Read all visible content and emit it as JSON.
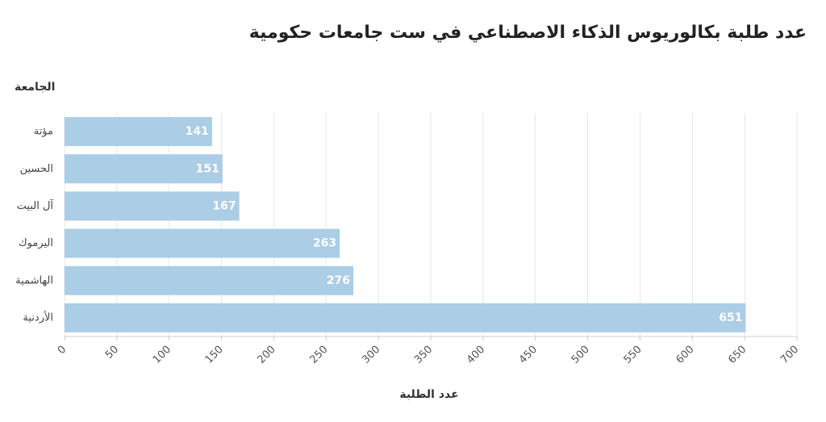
{
  "chart_data": {
    "type": "bar",
    "orientation": "horizontal",
    "title": "عدد طلبة بكالوريوس الذكاء الاصطناعي في ست جامعات حكومية",
    "xlabel": "عدد الطلبة",
    "ylabel": "الجامعة",
    "categories": [
      "مؤتة",
      "الحسين",
      "آل البيت",
      "اليرموك",
      "الهاشمية",
      "الأردنية"
    ],
    "values": [
      141,
      151,
      167,
      263,
      276,
      651
    ],
    "xlim": [
      0,
      700
    ],
    "xticks": [
      0,
      50,
      100,
      150,
      200,
      250,
      300,
      350,
      400,
      450,
      500,
      550,
      600,
      650,
      700
    ],
    "grid": true,
    "bar_color": "#abcde6",
    "label_color": "#ffffff"
  }
}
